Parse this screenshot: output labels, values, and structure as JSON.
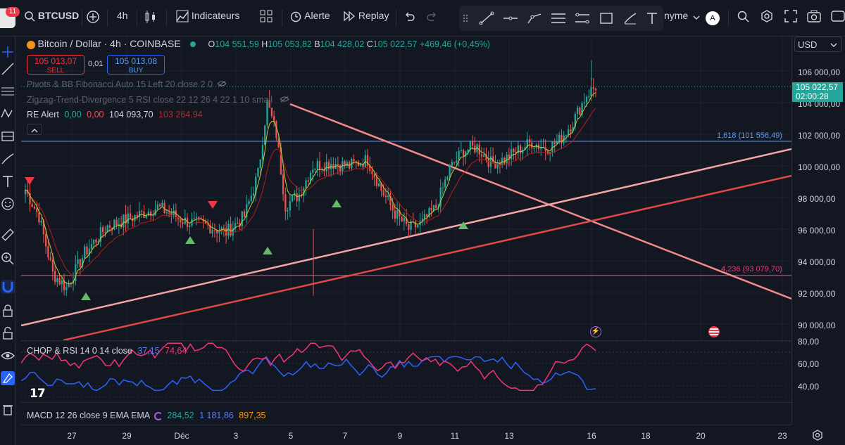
{
  "topbar": {
    "notif_count": "11",
    "symbol": "BTCUSD",
    "interval": "4h",
    "indicators_label": "Indicateurs",
    "alert_label": "Alerte",
    "replay_label": "Replay",
    "account_label": "nyme",
    "avatar_letter": "A"
  },
  "legend": {
    "title": "Bitcoin / Dollar · 4h · COINBASE",
    "o_label": "O",
    "o_value": "104 551,59",
    "h_label": "H",
    "h_value": "105 053,82",
    "b_label": "B",
    "b_value": "104 428,02",
    "c_label": "C",
    "c_value": "105 022,57",
    "change": "+469,46 (+0,45%)",
    "sell_price": "105 013,07",
    "sell_label": "SELL",
    "spread": "0,01",
    "buy_price": "105 013,08",
    "buy_label": "BUY",
    "ind1": "Pivots & BB Fibonacci Auto 15 Left 20 close 2 0",
    "ind2": "Zigzag-Trend-Divergence 5 RSI close 22 12 26 4 22 1 10 small",
    "re_alert_label": "RE Alert",
    "re_v1": "0,00",
    "re_v2": "0,00",
    "re_v3": "104 093,70",
    "re_v4": "103 264,94"
  },
  "currency": "USD",
  "price_axis": [
    "106 000,00",
    "104 000,00",
    "102 000,00",
    "100 000,00",
    "98 000,00",
    "96 000,00",
    "94 000,00",
    "92 000,00",
    "90 000,00"
  ],
  "current_price": {
    "value": "105 022,57",
    "countdown": "02:00:28"
  },
  "fib_labels": {
    "upper": "1,618 (101 556,49)",
    "lower": "4,236 (93 079,70)"
  },
  "chop_rsi": {
    "label": "CHOP & RSI",
    "params": "14 0 14 close",
    "chop": "37,15",
    "rsi": "74,64",
    "axis": [
      "80,00",
      "60,00",
      "40,00"
    ]
  },
  "macd": {
    "label": "MACD",
    "params": "12 26 close 9 EMA EMA",
    "v1": "284,52",
    "v2": "1 181,86",
    "v3": "897,35"
  },
  "time_axis": [
    "27",
    "29",
    "Déc",
    "3",
    "5",
    "7",
    "9",
    "11",
    "13",
    "16",
    "18",
    "20",
    "23"
  ],
  "colors": {
    "up": "#26a69a",
    "down": "#ef5350",
    "bg": "#131722",
    "accent": "#2962ff",
    "chop": "#2962ff",
    "rsi": "#f23672"
  }
}
